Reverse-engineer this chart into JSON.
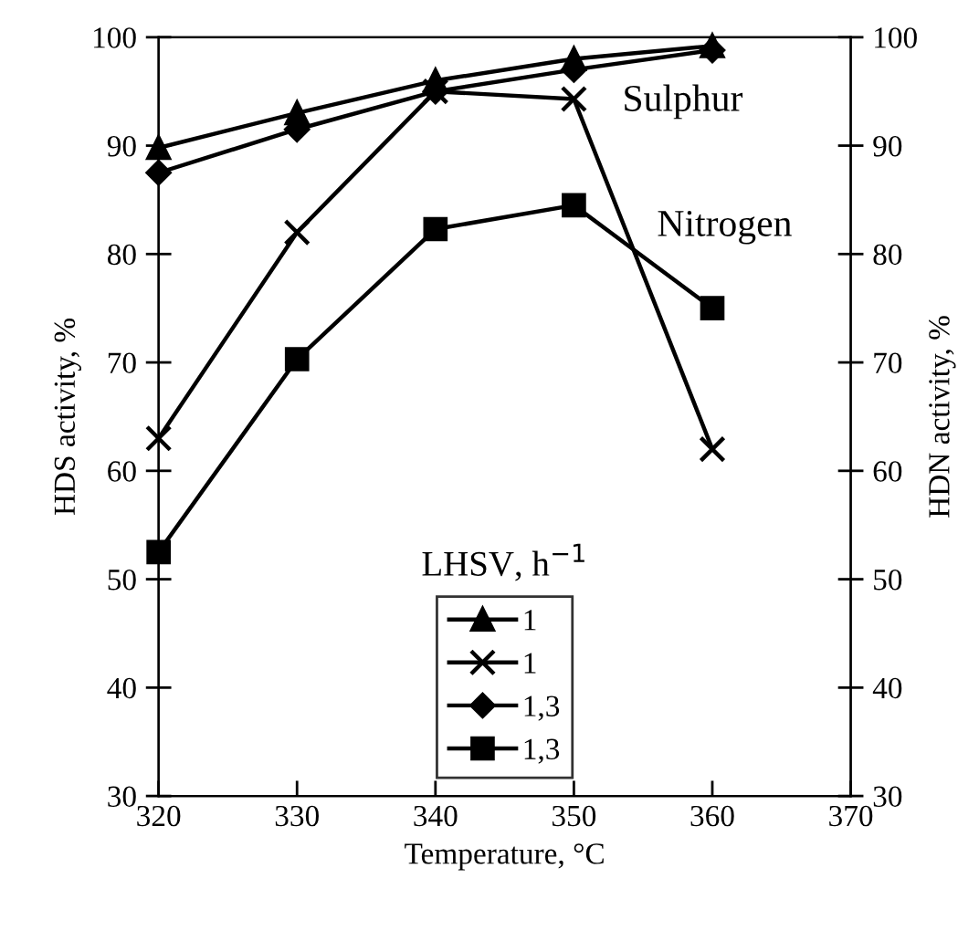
{
  "chart_data": {
    "type": "line",
    "xlabel": "Temperature, °C",
    "ylabel": "HDS activity, %",
    "y2label": "HDN activity, %",
    "legend_title": "LHSV, h$^{−1}$",
    "x": [
      320,
      330,
      340,
      350,
      360
    ],
    "series": [
      {
        "name": "1",
        "color": "#000000",
        "marker": "triangle",
        "values": [
          89.8,
          93,
          96,
          98,
          99.2
        ]
      },
      {
        "name": "1",
        "color": "#000000",
        "marker": "cross",
        "values": [
          63,
          82,
          95,
          94.3,
          62
        ]
      },
      {
        "name": "1,3",
        "color": "#000000",
        "marker": "diamond",
        "values": [
          87.5,
          91.5,
          95,
          97,
          98.8
        ]
      },
      {
        "name": "1,3",
        "color": "#000000",
        "marker": "square",
        "values": [
          52.5,
          70.3,
          82.3,
          84.5,
          75
        ]
      }
    ],
    "annotations": [
      "Sulphur",
      "Nitrogen"
    ],
    "xlim": [
      320,
      370
    ],
    "xticks": [
      320,
      330,
      340,
      350,
      360,
      370
    ],
    "ylim": [
      30,
      100
    ],
    "yticks": [
      30,
      40,
      50,
      60,
      70,
      80,
      90,
      100
    ],
    "y2lim": [
      30,
      100
    ],
    "y2ticks": [
      30,
      40,
      50,
      60,
      70,
      80,
      90,
      100
    ],
    "legend": "bottom",
    "grid": false,
    "line_style": "solid"
  }
}
